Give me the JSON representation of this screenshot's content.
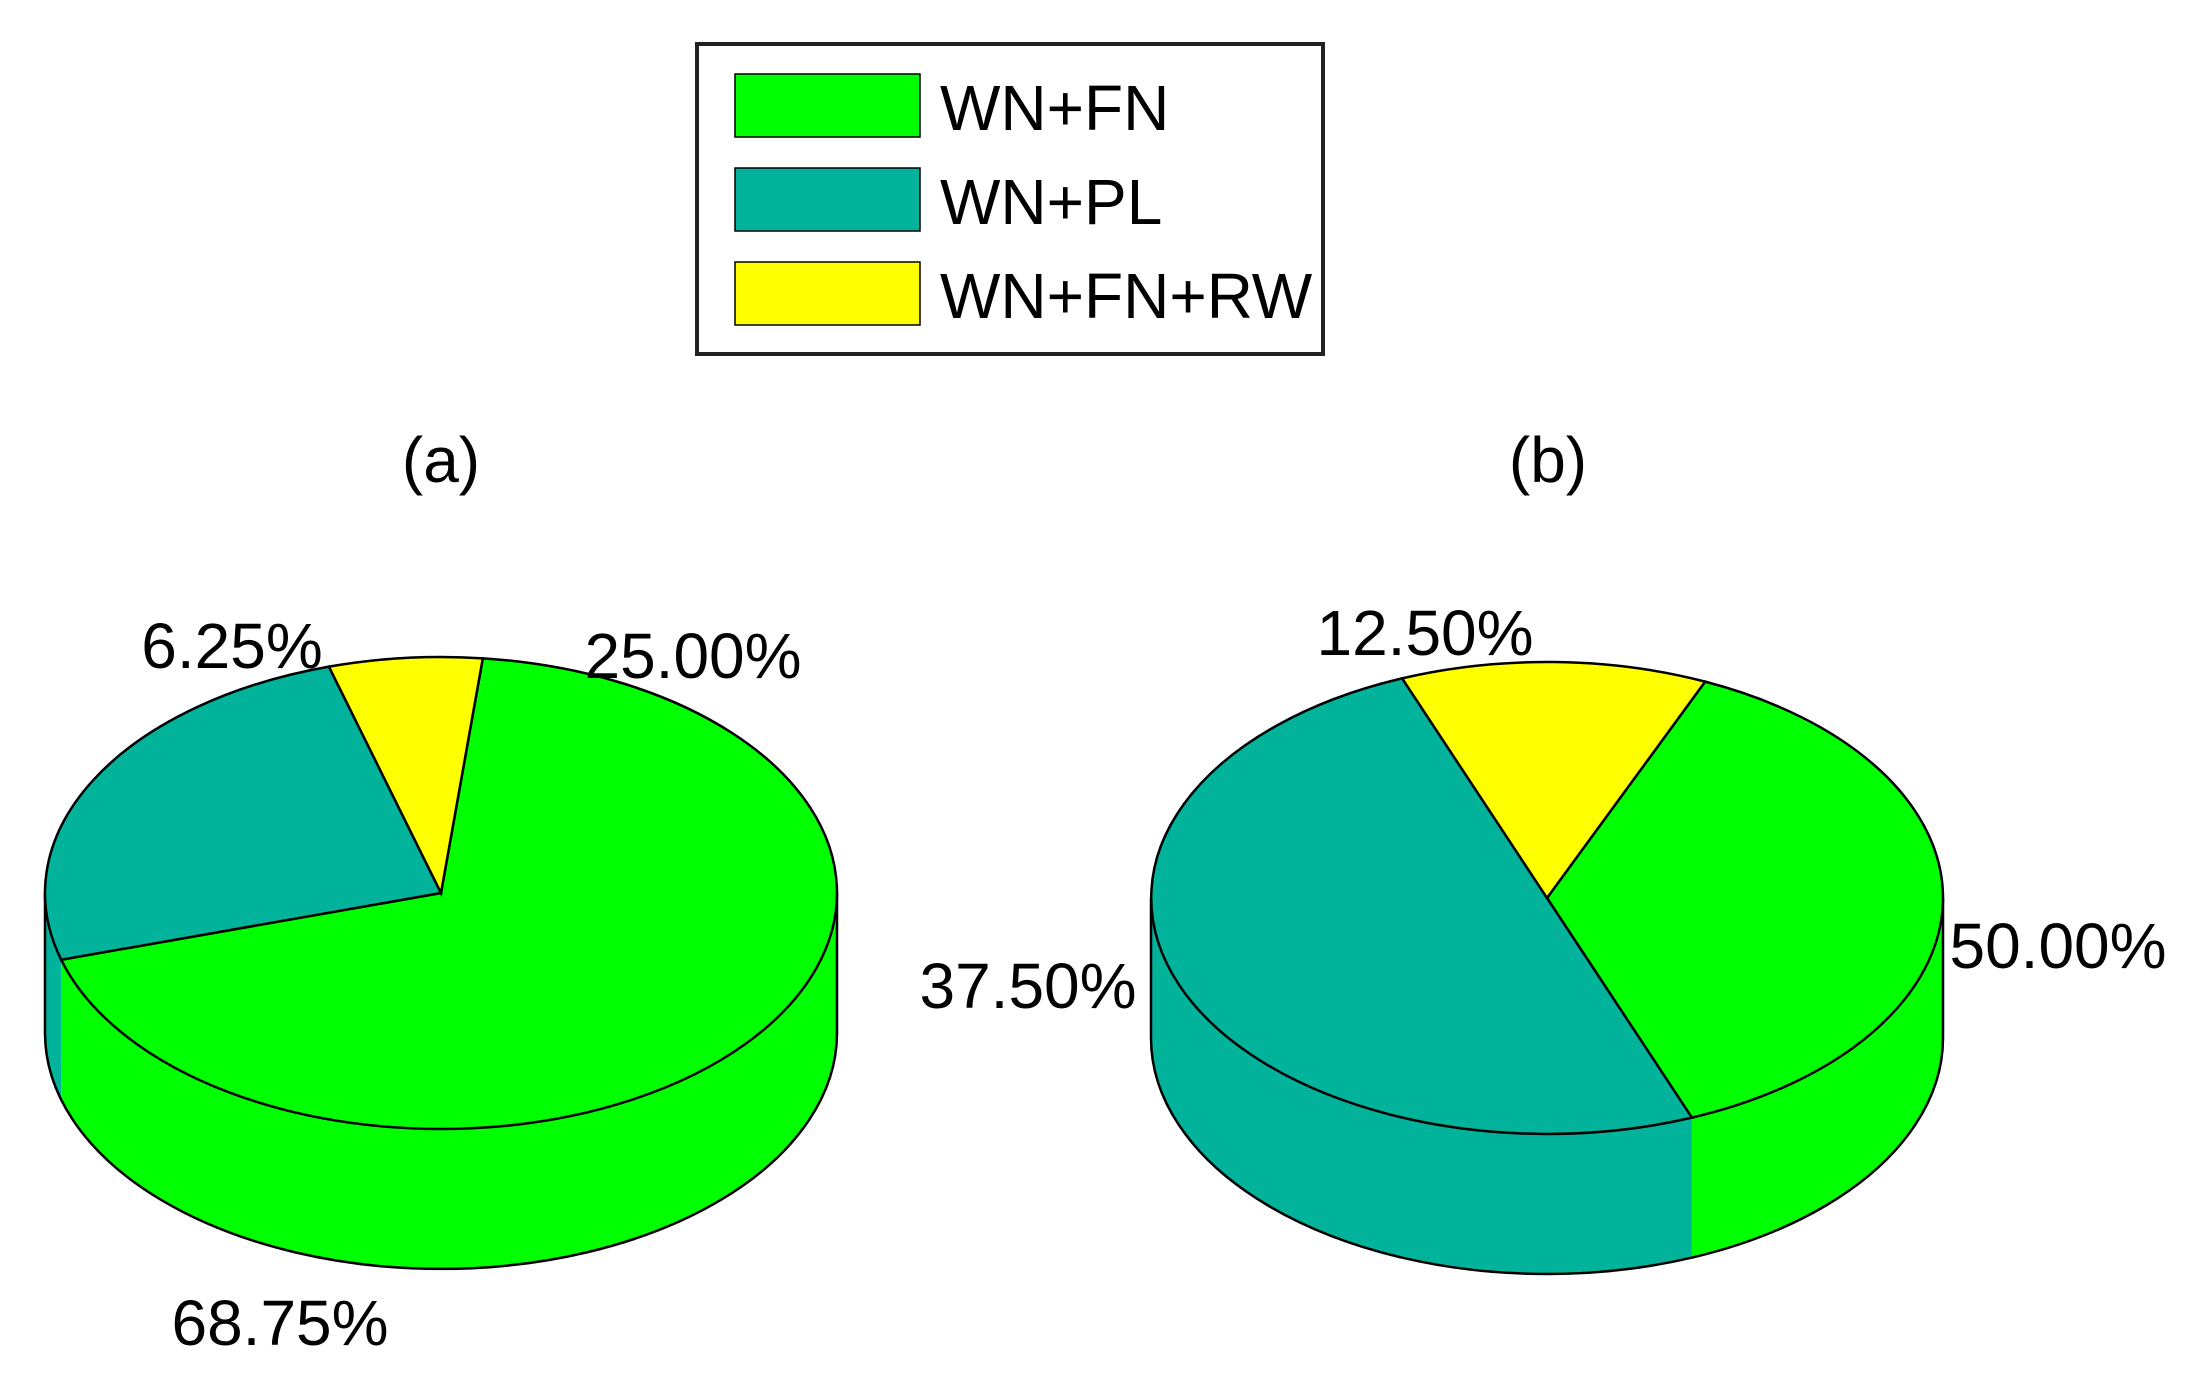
{
  "chart_data": [
    {
      "type": "pie",
      "title": "(a)",
      "categories": [
        "WN+FN",
        "WN+PL",
        "WN+FN+RW"
      ],
      "values": [
        68.75,
        25.0,
        6.25
      ],
      "labels": [
        "68.75%",
        "25.00%",
        "6.25%"
      ],
      "colors": [
        "#00ff00",
        "#00b39a",
        "#ffff00"
      ],
      "legend": "top-center"
    },
    {
      "type": "pie",
      "title": "(b)",
      "categories": [
        "WN+FN",
        "WN+PL",
        "WN+FN+RW"
      ],
      "values": [
        37.5,
        50.0,
        12.5
      ],
      "labels": [
        "37.50%",
        "50.00%",
        "12.50%"
      ],
      "colors": [
        "#00ff00",
        "#00b39a",
        "#ffff00"
      ],
      "legend": "top-center"
    }
  ],
  "legend": {
    "items": [
      {
        "label": "WN+FN",
        "color": "#00ff00"
      },
      {
        "label": "WN+PL",
        "color": "#00b39a"
      },
      {
        "label": "WN+FN+RW",
        "color": "#ffff00"
      }
    ]
  }
}
